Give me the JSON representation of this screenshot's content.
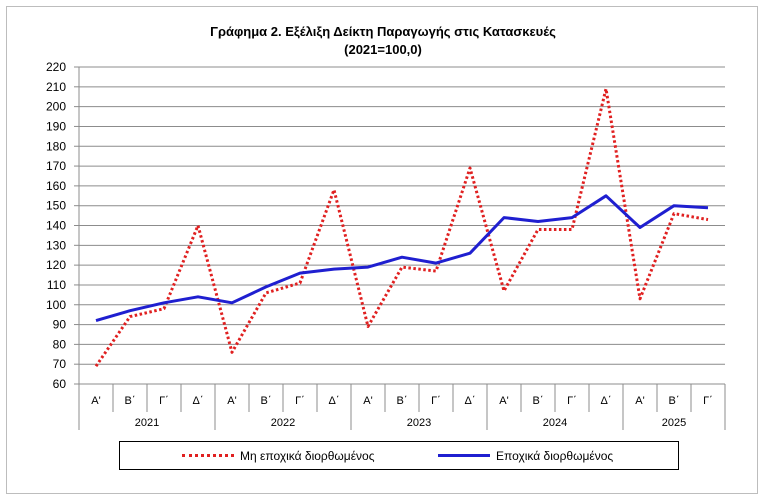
{
  "chart_data": {
    "type": "line",
    "title": "Γράφημα 2. Εξέλιξη  Δείκτη  Παραγωγής  στις Κατασκευές",
    "subtitle": "(2021=100,0)",
    "categories": [
      "Α'",
      "Β΄",
      "Γ΄",
      "Δ΄",
      "Α'",
      "Β΄",
      "Γ΄",
      "Δ΄",
      "Α'",
      "Β΄",
      "Γ΄",
      "Δ΄",
      "Α'",
      "Β΄",
      "Γ΄",
      "Δ΄",
      "Α'",
      "Β΄",
      "Γ΄"
    ],
    "years": [
      "2021",
      "2022",
      "2023",
      "2024",
      "2025"
    ],
    "series": [
      {
        "name": "Μη εποχικά διορθωμένος",
        "style": "dotted",
        "color": "#e02020",
        "values": [
          69,
          94,
          98,
          140,
          76,
          106,
          111,
          158,
          89,
          119,
          117,
          169,
          107,
          138,
          138,
          209,
          103,
          146,
          143
        ]
      },
      {
        "name": "Εποχικά διορθωμένος",
        "style": "solid",
        "color": "#1f1fd0",
        "values": [
          92,
          97,
          101,
          104,
          101,
          109,
          116,
          118,
          119,
          124,
          121,
          126,
          144,
          142,
          144,
          155,
          139,
          150,
          149
        ]
      }
    ],
    "ylim": [
      60,
      220
    ],
    "yticks": [
      "60",
      "70",
      "80",
      "90",
      "100",
      "110",
      "120",
      "130",
      "140",
      "150",
      "160",
      "170",
      "180",
      "190",
      "200",
      "210",
      "220"
    ],
    "grid": true,
    "legend_position": "bottom"
  }
}
